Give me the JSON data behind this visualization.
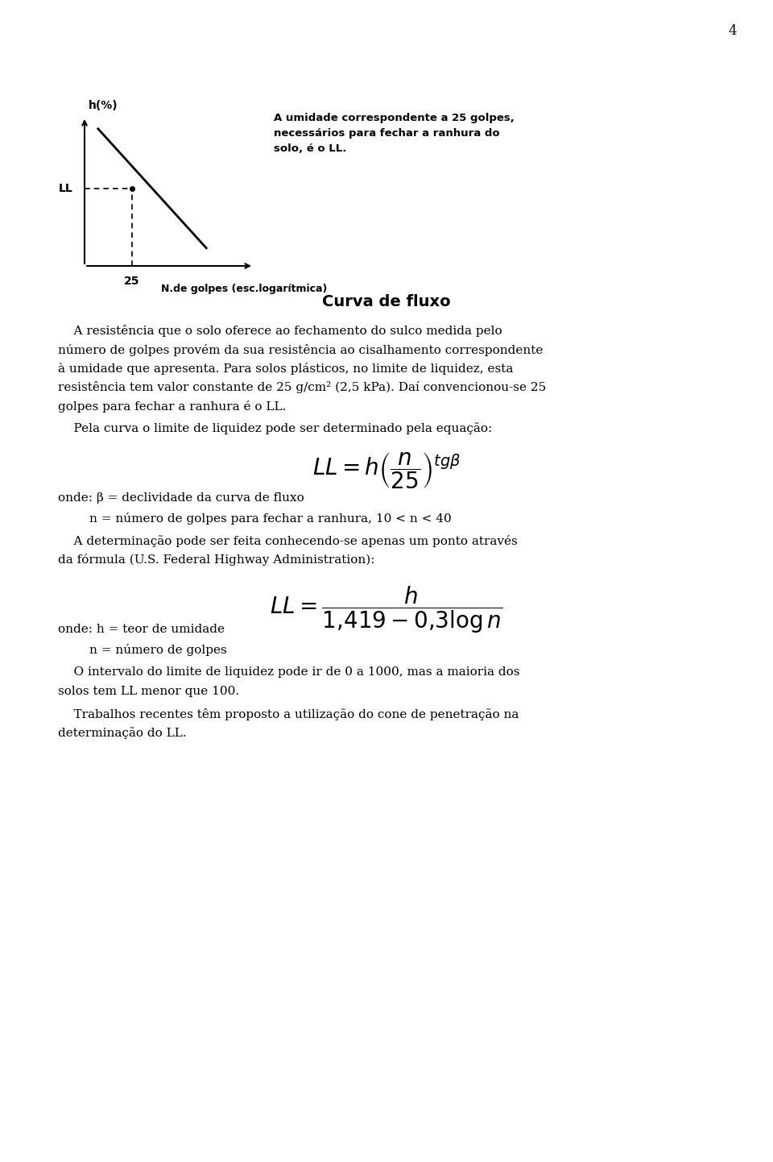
{
  "page_number": "4",
  "bg_color": "#ffffff",
  "text_color": "#000000",
  "page_width": 9.6,
  "page_height": 14.42,
  "annotation_text": "A umidade correspondente a 25 golpes,\nnecessários para fechar a ranhura do\nsolo, é o LL.",
  "title_curva": "Curva de fluxo",
  "para1_indent": "    A resistência que o solo oferece ao fechamento do sulco medida pelo",
  "para1_cont": "número de golpes provém da sua resistência ao cisalhamento correspondente\nà umidade que apresenta. Para solos plásticos, no limite de liquidez, esta\nresistência tem valor constante de 25 g/cm² (2,5 kPa). Daí convencionou-se 25\ngolpes para fechar a ranhura é o LL.",
  "para2": "    Pela curva o limite de liquidez pode ser determinado pela equação:",
  "onde1_line1": "onde: β = declividade da curva de fluxo",
  "onde1_line2": "        n = número de golpes para fechar a ranhura, 10 < n < 40",
  "para3_indent": "    A determinação pode ser feita conhecendo-se apenas um ponto através",
  "para3_cont": "da fórmula (U.S. Federal Highway Administration):",
  "onde2_line1": "onde: h = teor de umidade",
  "onde2_line2": "        n = número de golpes",
  "para4_indent": "    O intervalo do limite de liquidez pode ir de 0 a 1000, mas a maioria dos",
  "para4_cont": "solos tem LL menor que 100.",
  "para5_indent": "    Trabalhos recentes têm proposto a utilização do cone de penetração na",
  "para5_cont": "determinação do LL."
}
